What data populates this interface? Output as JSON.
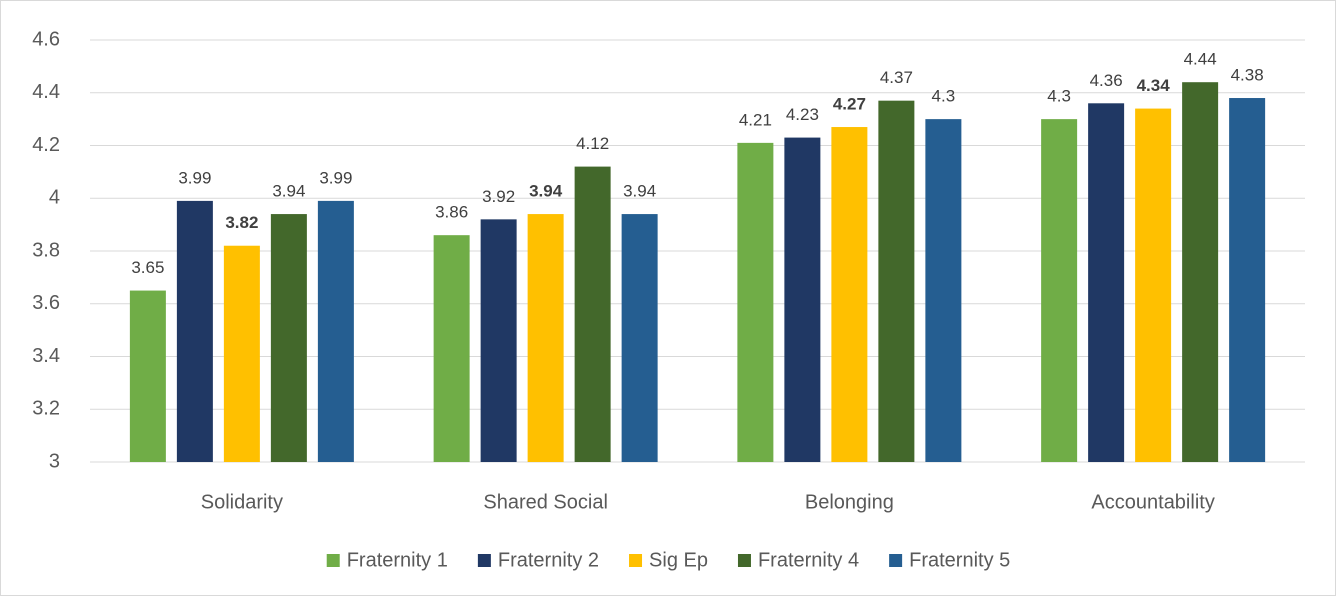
{
  "chart_data": {
    "type": "bar",
    "categories": [
      "Solidarity",
      "Shared Social",
      "Belonging",
      "Accountability"
    ],
    "series": [
      {
        "name": "Fraternity 1",
        "color": "#70ad47",
        "values": [
          3.65,
          3.86,
          4.21,
          4.3
        ]
      },
      {
        "name": "Fraternity 2",
        "color": "#203864",
        "values": [
          3.99,
          3.92,
          4.23,
          4.36
        ]
      },
      {
        "name": "Sig Ep",
        "color": "#ffc000",
        "values": [
          3.82,
          3.94,
          4.27,
          4.34
        ],
        "label_weight": "bold"
      },
      {
        "name": "Fraternity 4",
        "color": "#43682b",
        "values": [
          3.94,
          4.12,
          4.37,
          4.44
        ]
      },
      {
        "name": "Fraternity 5",
        "color": "#255e91",
        "values": [
          3.99,
          3.94,
          4.3,
          4.38
        ]
      }
    ],
    "ylim": [
      3,
      4.6
    ],
    "yticks": [
      3,
      3.2,
      3.4,
      3.6,
      3.8,
      4,
      4.2,
      4.4,
      4.6
    ],
    "grid": true,
    "legend": "bottom"
  }
}
